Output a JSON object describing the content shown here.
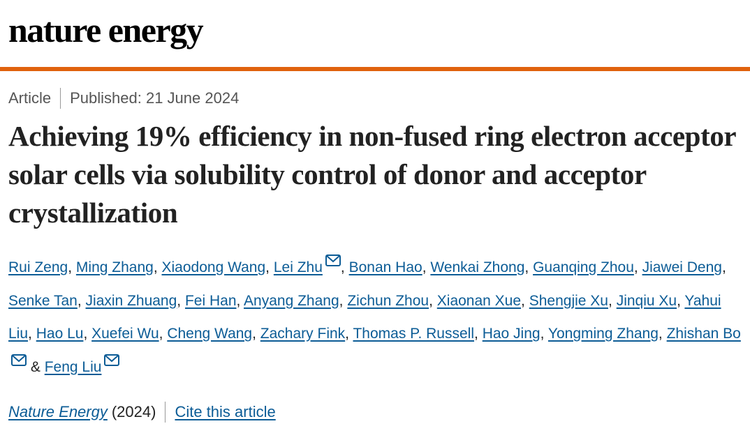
{
  "header": {
    "logo": "nature energy"
  },
  "article": {
    "type": "Article",
    "published": "Published: 21 June 2024",
    "title": "Achieving 19% efficiency in non-fused ring electron acceptor solar cells via solubility control of donor and acceptor crystallization",
    "separator": ",",
    "last_joiner": "&",
    "authors": [
      {
        "name": "Rui Zeng",
        "email": false
      },
      {
        "name": "Ming Zhang",
        "email": false
      },
      {
        "name": "Xiaodong Wang",
        "email": false
      },
      {
        "name": "Lei Zhu",
        "email": true
      },
      {
        "name": "Bonan Hao",
        "email": false
      },
      {
        "name": "Wenkai Zhong",
        "email": false
      },
      {
        "name": "Guanqing Zhou",
        "email": false
      },
      {
        "name": "Jiawei Deng",
        "email": false
      },
      {
        "name": "Senke Tan",
        "email": false
      },
      {
        "name": "Jiaxin Zhuang",
        "email": false
      },
      {
        "name": "Fei Han",
        "email": false
      },
      {
        "name": "Anyang Zhang",
        "email": false
      },
      {
        "name": "Zichun Zhou",
        "email": false
      },
      {
        "name": "Xiaonan Xue",
        "email": false
      },
      {
        "name": "Shengjie Xu",
        "email": false
      },
      {
        "name": "Jinqiu Xu",
        "email": false
      },
      {
        "name": "Yahui Liu",
        "email": false
      },
      {
        "name": "Hao Lu",
        "email": false
      },
      {
        "name": "Xuefei Wu",
        "email": false
      },
      {
        "name": "Cheng Wang",
        "email": false
      },
      {
        "name": "Zachary Fink",
        "email": false
      },
      {
        "name": "Thomas P. Russell",
        "email": false
      },
      {
        "name": "Hao Jing",
        "email": false
      },
      {
        "name": "Yongming Zhang",
        "email": false
      },
      {
        "name": "Zhishan Bo",
        "email": true
      },
      {
        "name": "Feng Liu",
        "email": true
      }
    ],
    "journal": "Nature Energy",
    "year": "(2024)",
    "cite": "Cite this article"
  }
}
